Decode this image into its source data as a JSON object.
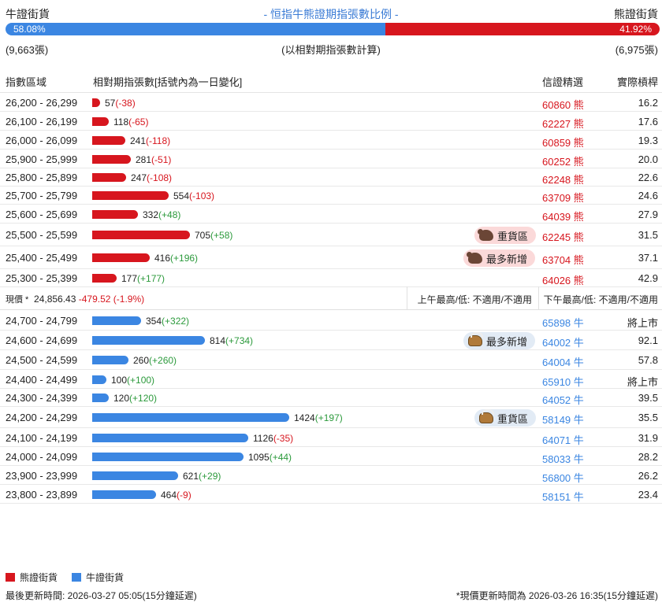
{
  "header": {
    "bull_label": "牛證街貨",
    "bear_label": "熊證街貨",
    "title": "- 恒指牛熊證期指張數比例 -"
  },
  "ratio": {
    "bull_pct": 58.08,
    "bear_pct": 41.92,
    "bull_pct_text": "58.08%",
    "bear_pct_text": "41.92%"
  },
  "counts": {
    "bull": "(9,663張)",
    "note": "(以相對期指張數計算)",
    "bear": "(6,975張)"
  },
  "columns": {
    "range": "指數區域",
    "bar": "相對期指張數[括號內為一日變化]",
    "cbbc": "信證精選",
    "leverage": "實際槓桿"
  },
  "colors": {
    "bear": "#d7161e",
    "bull": "#3b86e2",
    "up": "#2c9a3c"
  },
  "bear_rows": [
    {
      "range": "26,200 - 26,299",
      "value": 57,
      "value_text": "57",
      "chg": "(-38)",
      "code": "60860",
      "type": "熊",
      "lev": "16.2"
    },
    {
      "range": "26,100 - 26,199",
      "value": 118,
      "value_text": "118",
      "chg": "(-65)",
      "code": "62227",
      "type": "熊",
      "lev": "17.6"
    },
    {
      "range": "26,000 - 26,099",
      "value": 241,
      "value_text": "241",
      "chg": "(-118)",
      "code": "60859",
      "type": "熊",
      "lev": "19.3"
    },
    {
      "range": "25,900 - 25,999",
      "value": 281,
      "value_text": "281",
      "chg": "(-51)",
      "code": "60252",
      "type": "熊",
      "lev": "20.0"
    },
    {
      "range": "25,800 - 25,899",
      "value": 247,
      "value_text": "247",
      "chg": "(-108)",
      "code": "62248",
      "type": "熊",
      "lev": "22.6"
    },
    {
      "range": "25,700 - 25,799",
      "value": 554,
      "value_text": "554",
      "chg": "(-103)",
      "code": "63709",
      "type": "熊",
      "lev": "24.6"
    },
    {
      "range": "25,600 - 25,699",
      "value": 332,
      "value_text": "332",
      "chg": "(+48)",
      "code": "64039",
      "type": "熊",
      "lev": "27.9"
    },
    {
      "range": "25,500 - 25,599",
      "value": 705,
      "value_text": "705",
      "chg": "(+58)",
      "code": "62245",
      "type": "熊",
      "lev": "31.5",
      "badge": "重貨區"
    },
    {
      "range": "25,400 - 25,499",
      "value": 416,
      "value_text": "416",
      "chg": "(+196)",
      "code": "63704",
      "type": "熊",
      "lev": "37.1",
      "badge": "最多新增"
    },
    {
      "range": "25,300 - 25,399",
      "value": 177,
      "value_text": "177",
      "chg": "(+177)",
      "code": "64026",
      "type": "熊",
      "lev": "42.9"
    }
  ],
  "price": {
    "label": "現價 *",
    "value": "24,856.43",
    "change": "-479.52 (-1.9%)",
    "am": "上午最高/低: 不適用/不適用",
    "pm": "下午最高/低: 不適用/不適用"
  },
  "bull_rows": [
    {
      "range": "24,700 - 24,799",
      "value": 354,
      "value_text": "354",
      "chg": "(+322)",
      "code": "65898",
      "type": "牛",
      "lev": "將上市"
    },
    {
      "range": "24,600 - 24,699",
      "value": 814,
      "value_text": "814",
      "chg": "(+734)",
      "code": "64002",
      "type": "牛",
      "lev": "92.1",
      "badge": "最多新增"
    },
    {
      "range": "24,500 - 24,599",
      "value": 260,
      "value_text": "260",
      "chg": "(+260)",
      "code": "64004",
      "type": "牛",
      "lev": "57.8"
    },
    {
      "range": "24,400 - 24,499",
      "value": 100,
      "value_text": "100",
      "chg": "(+100)",
      "code": "65910",
      "type": "牛",
      "lev": "將上市"
    },
    {
      "range": "24,300 - 24,399",
      "value": 120,
      "value_text": "120",
      "chg": "(+120)",
      "code": "64052",
      "type": "牛",
      "lev": "39.5"
    },
    {
      "range": "24,200 - 24,299",
      "value": 1424,
      "value_text": "1424",
      "chg": "(+197)",
      "code": "58149",
      "type": "牛",
      "lev": "35.5",
      "badge": "重貨區"
    },
    {
      "range": "24,100 - 24,199",
      "value": 1126,
      "value_text": "1126",
      "chg": "(-35)",
      "code": "64071",
      "type": "牛",
      "lev": "31.9"
    },
    {
      "range": "24,000 - 24,099",
      "value": 1095,
      "value_text": "1095",
      "chg": "(+44)",
      "code": "58033",
      "type": "牛",
      "lev": "28.2"
    },
    {
      "range": "23,900 - 23,999",
      "value": 621,
      "value_text": "621",
      "chg": "(+29)",
      "code": "56800",
      "type": "牛",
      "lev": "26.2"
    },
    {
      "range": "23,800 - 23,899",
      "value": 464,
      "value_text": "464",
      "chg": "(-9)",
      "code": "58151",
      "type": "牛",
      "lev": "23.4"
    }
  ],
  "legend": {
    "bear": "熊證街貨",
    "bull": "牛證街貨"
  },
  "footer": {
    "left": "最後更新時間: 2026-03-27 05:05(15分鐘延遲)",
    "right": "*現價更新時間為 2026-03-26 16:35(15分鐘延遲)"
  }
}
